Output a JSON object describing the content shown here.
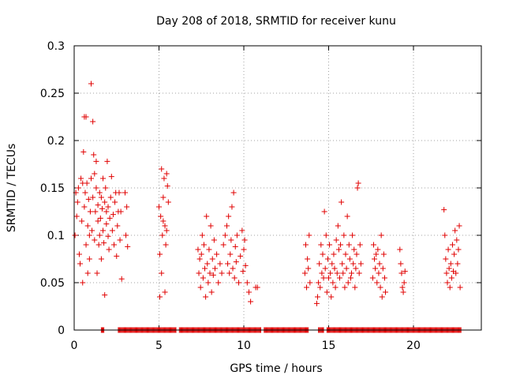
{
  "chart_data": {
    "type": "scatter",
    "title": "Day 208 of 2018, SRMTID for receiver kunu",
    "xlabel": "GPS time / hours",
    "ylabel": "SRMTID / TECUs",
    "xlim": [
      0,
      24
    ],
    "ylim": [
      0,
      0.3
    ],
    "xticks": [
      0,
      5,
      10,
      15,
      20
    ],
    "xtick_labels": [
      "0",
      "5",
      "10",
      "15",
      "20"
    ],
    "yticks": [
      0,
      0.05,
      0.1,
      0.15,
      0.2,
      0.25,
      0.3
    ],
    "ytick_labels": [
      "0",
      "0.05",
      "0.1",
      "0.15",
      "0.2",
      "0.25",
      "0.3"
    ],
    "grid": true,
    "marker": "plus",
    "color": "#e00000",
    "series": [
      {
        "name": "SRMTID",
        "x": [
          0.05,
          0.1,
          0.15,
          0.2,
          0.25,
          0.3,
          0.35,
          0.4,
          0.45,
          0.5,
          0.5,
          0.55,
          0.6,
          0.6,
          0.65,
          0.7,
          0.7,
          0.75,
          0.8,
          0.8,
          0.85,
          0.9,
          0.9,
          0.95,
          1.0,
          1.0,
          1.05,
          1.1,
          1.1,
          1.15,
          1.2,
          1.2,
          1.25,
          1.3,
          1.3,
          1.35,
          1.4,
          1.4,
          1.45,
          1.5,
          1.5,
          1.55,
          1.6,
          1.6,
          1.65,
          1.7,
          1.7,
          1.75,
          1.8,
          1.8,
          1.85,
          1.9,
          1.9,
          1.95,
          2.0,
          2.0,
          2.05,
          2.1,
          2.15,
          2.2,
          2.25,
          2.3,
          2.35,
          2.4,
          2.45,
          2.5,
          2.55,
          2.6,
          2.65,
          2.7,
          2.75,
          2.8,
          3.0,
          3.05,
          3.1,
          3.15,
          5.0,
          5.05,
          5.1,
          5.15,
          5.2,
          5.25,
          5.3,
          5.35,
          5.4,
          5.45,
          5.5,
          5.55,
          5.05,
          5.15,
          5.25,
          5.35,
          5.45,
          7.3,
          7.35,
          7.4,
          7.45,
          7.5,
          7.55,
          7.6,
          7.65,
          7.7,
          7.75,
          7.8,
          7.85,
          7.9,
          7.95,
          8.0,
          8.05,
          8.1,
          8.15,
          8.2,
          8.25,
          8.3,
          8.4,
          8.5,
          8.6,
          8.7,
          8.8,
          8.9,
          9.0,
          9.05,
          9.1,
          9.15,
          9.2,
          9.25,
          9.3,
          9.35,
          9.4,
          9.45,
          9.5,
          9.55,
          9.6,
          9.7,
          9.8,
          9.9,
          9.95,
          10.0,
          10.05,
          10.1,
          10.2,
          10.3,
          10.4,
          10.7,
          10.8,
          13.6,
          13.65,
          13.7,
          13.75,
          13.8,
          13.85,
          13.9,
          14.3,
          14.35,
          14.4,
          14.45,
          14.5,
          14.55,
          14.6,
          14.65,
          14.7,
          14.75,
          14.8,
          14.85,
          14.9,
          14.95,
          15.0,
          15.05,
          15.1,
          15.15,
          15.2,
          15.25,
          15.3,
          15.35,
          15.4,
          15.45,
          15.5,
          15.55,
          15.6,
          15.65,
          15.7,
          15.75,
          15.8,
          15.85,
          15.9,
          15.95,
          16.0,
          16.05,
          16.1,
          16.15,
          16.2,
          16.25,
          16.3,
          16.35,
          16.4,
          16.45,
          16.5,
          16.55,
          16.6,
          16.65,
          16.7,
          16.75,
          16.8,
          16.85,
          16.9,
          17.6,
          17.65,
          17.7,
          17.75,
          17.8,
          17.85,
          17.9,
          17.95,
          18.0,
          18.05,
          18.1,
          18.15,
          18.2,
          18.25,
          18.3,
          18.35,
          19.2,
          19.25,
          19.3,
          19.35,
          19.4,
          19.45,
          19.5,
          21.8,
          21.85,
          21.9,
          21.95,
          22.0,
          22.05,
          22.1,
          22.15,
          22.2,
          22.25,
          22.3,
          22.35,
          22.4,
          22.45,
          22.5,
          22.55,
          22.6,
          22.65,
          22.7,
          22.75
        ],
        "y": [
          0.1,
          0.145,
          0.12,
          0.135,
          0.15,
          0.08,
          0.07,
          0.16,
          0.115,
          0.155,
          0.05,
          0.188,
          0.225,
          0.13,
          0.145,
          0.225,
          0.09,
          0.155,
          0.11,
          0.06,
          0.138,
          0.1,
          0.075,
          0.125,
          0.16,
          0.26,
          0.105,
          0.14,
          0.22,
          0.185,
          0.095,
          0.165,
          0.125,
          0.15,
          0.178,
          0.06,
          0.115,
          0.132,
          0.09,
          0.145,
          0.1,
          0.118,
          0.14,
          0.075,
          0.128,
          0.16,
          0.105,
          0.092,
          0.135,
          0.037,
          0.15,
          0.112,
          0.125,
          0.178,
          0.099,
          0.13,
          0.085,
          0.118,
          0.14,
          0.162,
          0.105,
          0.122,
          0.09,
          0.135,
          0.145,
          0.078,
          0.11,
          0.125,
          0.145,
          0.095,
          0.125,
          0.054,
          0.145,
          0.1,
          0.13,
          0.088,
          0.13,
          0.08,
          0.12,
          0.17,
          0.1,
          0.14,
          0.16,
          0.11,
          0.09,
          0.165,
          0.152,
          0.135,
          0.035,
          0.06,
          0.115,
          0.04,
          0.105,
          0.085,
          0.06,
          0.075,
          0.045,
          0.08,
          0.1,
          0.055,
          0.09,
          0.065,
          0.035,
          0.12,
          0.07,
          0.05,
          0.085,
          0.06,
          0.11,
          0.04,
          0.075,
          0.058,
          0.095,
          0.065,
          0.08,
          0.05,
          0.07,
          0.06,
          0.09,
          0.1,
          0.11,
          0.07,
          0.12,
          0.06,
          0.08,
          0.095,
          0.13,
          0.065,
          0.145,
          0.055,
          0.088,
          0.072,
          0.1,
          0.05,
          0.078,
          0.105,
          0.062,
          0.085,
          0.095,
          0.068,
          0.05,
          0.04,
          0.03,
          0.045,
          0.045,
          0.06,
          0.09,
          0.045,
          0.075,
          0.065,
          0.1,
          0.05,
          0.028,
          0.035,
          0.05,
          0.07,
          0.045,
          0.09,
          0.06,
          0.08,
          0.055,
          0.125,
          0.065,
          0.1,
          0.04,
          0.075,
          0.055,
          0.09,
          0.06,
          0.035,
          0.07,
          0.05,
          0.08,
          0.065,
          0.045,
          0.095,
          0.06,
          0.11,
          0.085,
          0.055,
          0.09,
          0.135,
          0.07,
          0.06,
          0.1,
          0.045,
          0.08,
          0.065,
          0.12,
          0.05,
          0.09,
          0.075,
          0.055,
          0.06,
          0.1,
          0.07,
          0.085,
          0.045,
          0.065,
          0.08,
          0.15,
          0.155,
          0.06,
          0.09,
          0.07,
          0.055,
          0.09,
          0.075,
          0.065,
          0.08,
          0.05,
          0.085,
          0.06,
          0.07,
          0.045,
          0.1,
          0.035,
          0.065,
          0.08,
          0.055,
          0.04,
          0.085,
          0.07,
          0.06,
          0.045,
          0.04,
          0.05,
          0.062,
          0.127,
          0.1,
          0.075,
          0.06,
          0.05,
          0.085,
          0.065,
          0.045,
          0.07,
          0.055,
          0.09,
          0.062,
          0.08,
          0.105,
          0.06,
          0.095,
          0.07,
          0.085,
          0.11,
          0.045
        ],
        "zero_band_x_ranges": [
          [
            1.6,
            1.75
          ],
          [
            2.6,
            6.0
          ],
          [
            6.2,
            11.0
          ],
          [
            11.2,
            13.8
          ],
          [
            14.4,
            14.7
          ],
          [
            14.9,
            22.8
          ]
        ]
      }
    ]
  }
}
